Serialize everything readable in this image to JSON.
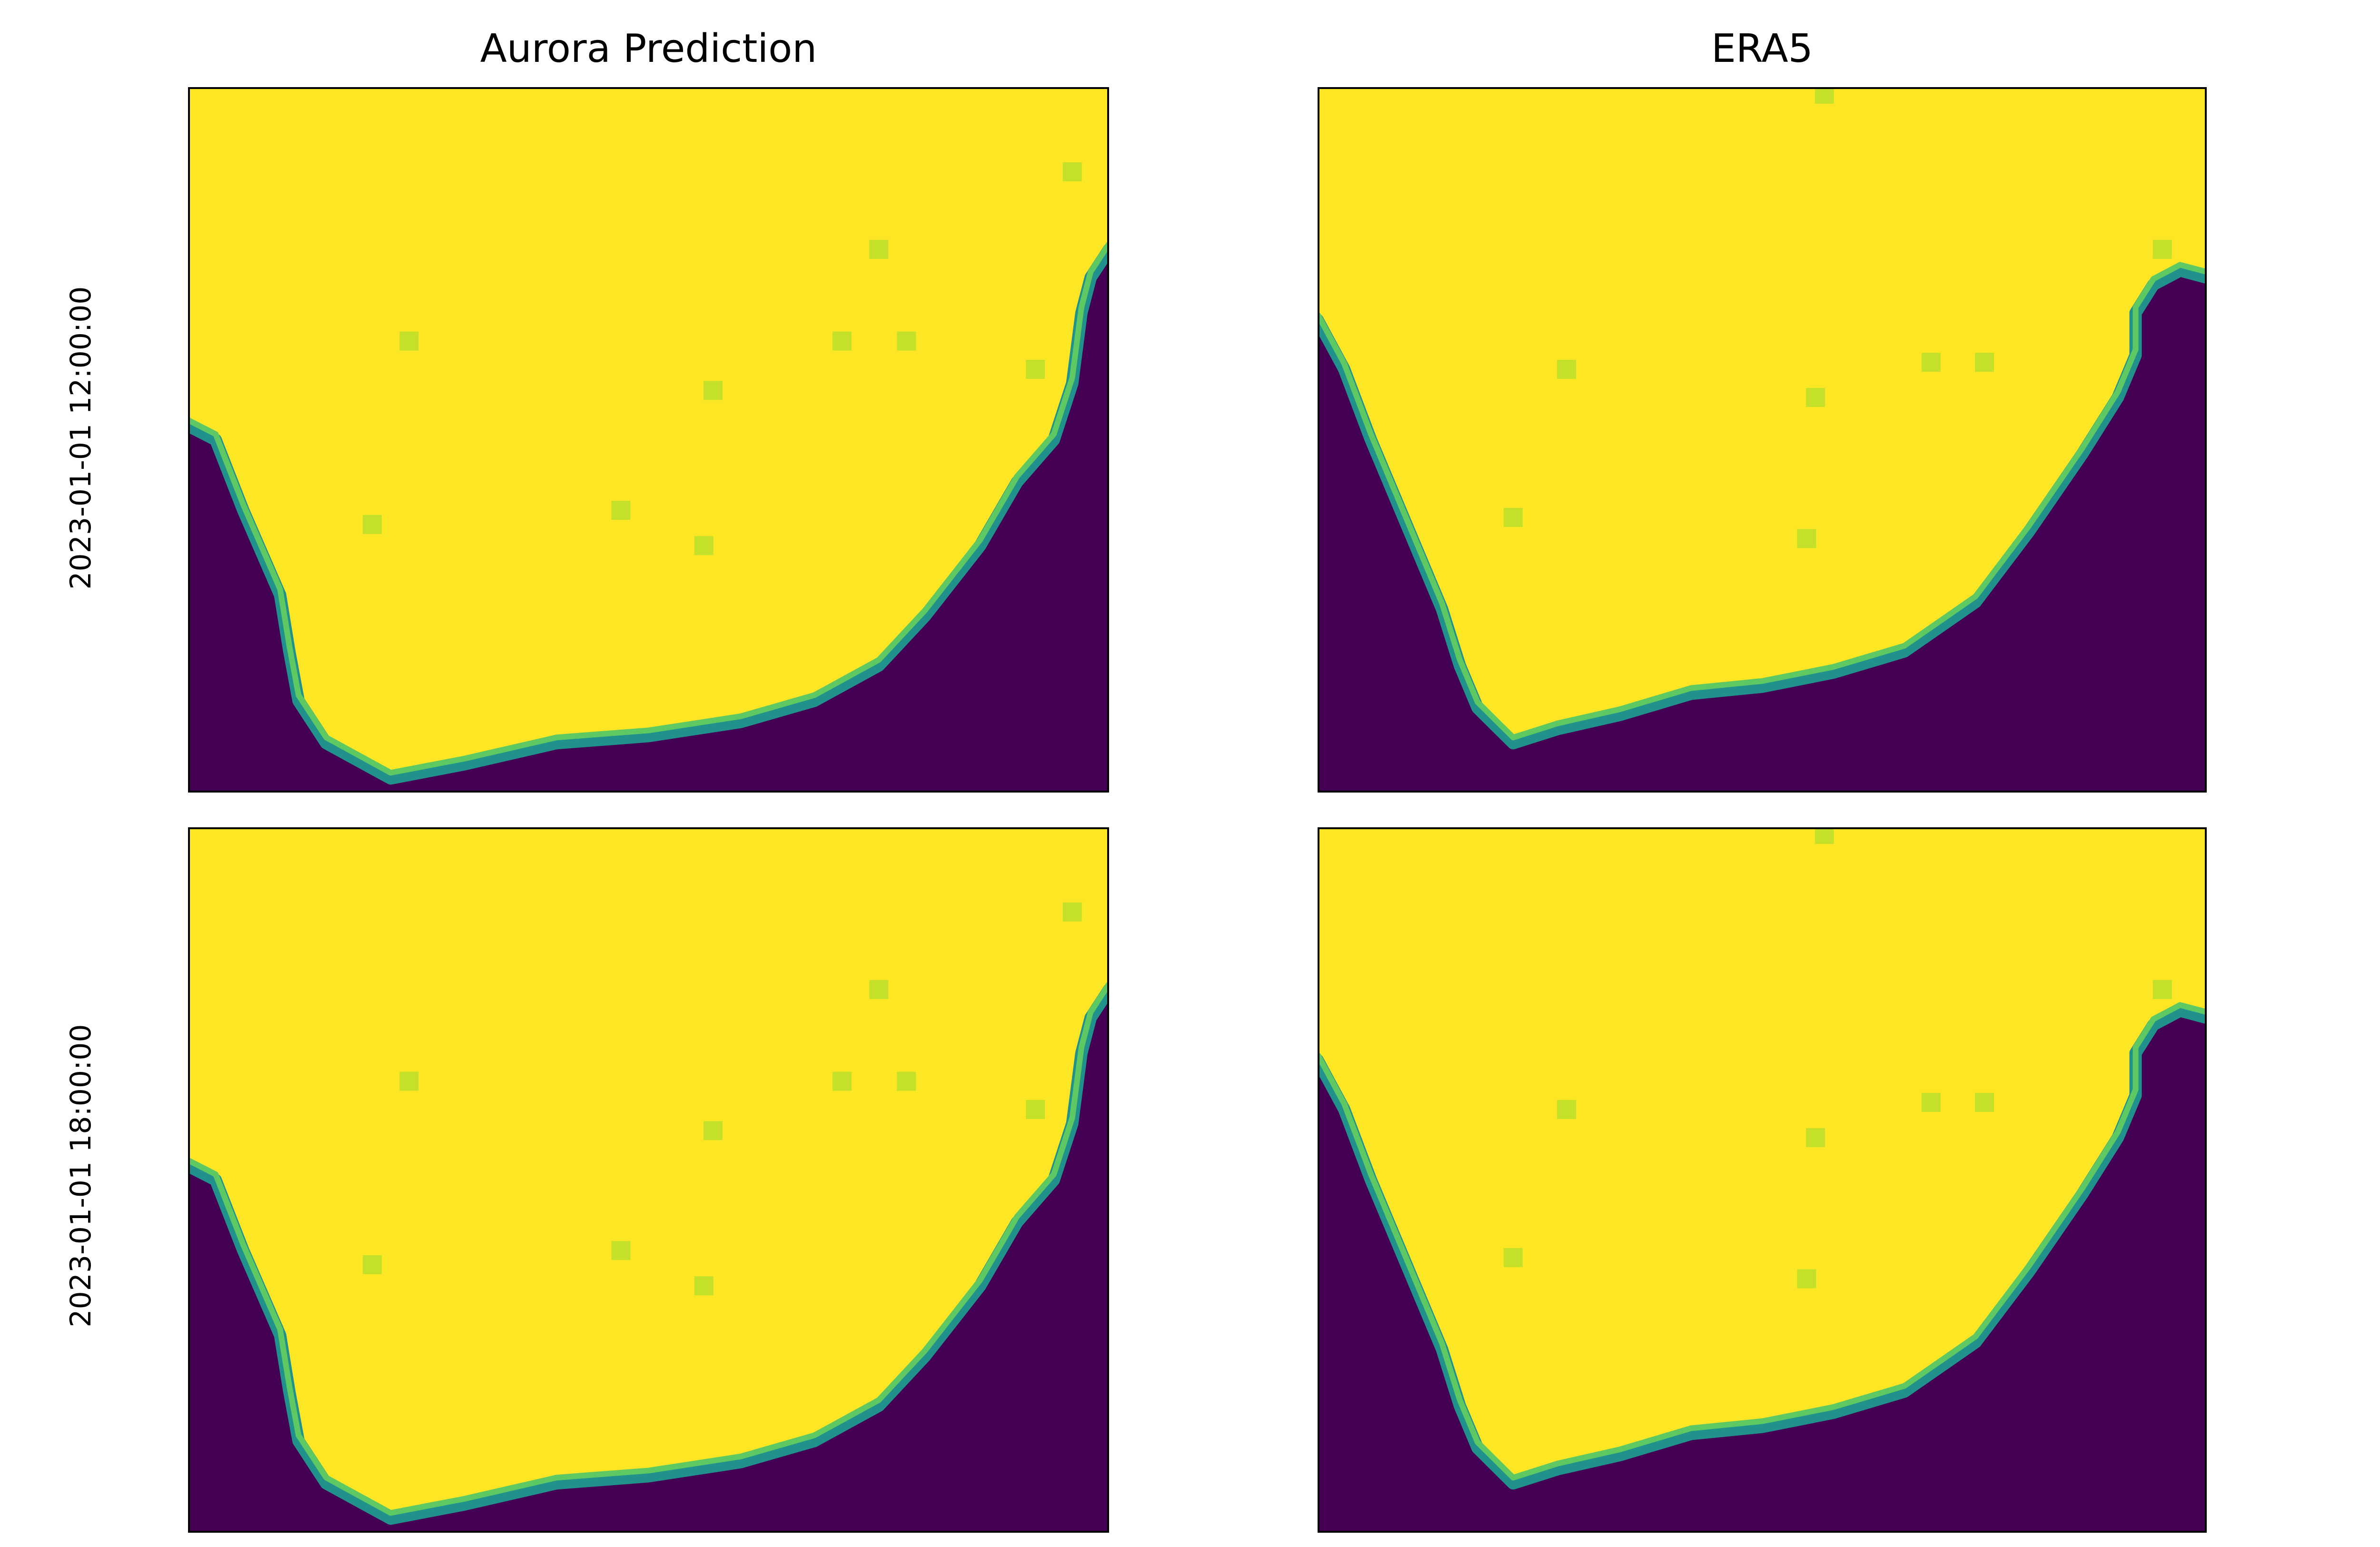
{
  "figure": {
    "columns": [
      "Aurora Prediction",
      "ERA5"
    ],
    "rows": [
      "2023-01-01 12:00:00",
      "2023-01-01 18:00:00"
    ]
  },
  "colors": {
    "land": "#fde725",
    "ocean": "#440154",
    "coast_mid": "#21918c",
    "coast_light": "#5ec962",
    "land_speck": "#b5de2b"
  },
  "chart_data": [
    {
      "type": "heatmap",
      "title": "Aurora Prediction",
      "row": "2023-01-01 12:00:00",
      "colormap": "viridis",
      "axes_ticks": false,
      "description_values": "land fraction field; land ≈ 1 (yellow), ocean ≈ 0 (dark purple)",
      "coastline": [
        [
          0,
          0.48
        ],
        [
          0.03,
          0.5
        ],
        [
          0.06,
          0.6
        ],
        [
          0.1,
          0.72
        ],
        [
          0.11,
          0.8
        ],
        [
          0.12,
          0.87
        ],
        [
          0.15,
          0.93
        ],
        [
          0.22,
          0.98
        ],
        [
          0.3,
          0.96
        ],
        [
          0.4,
          0.93
        ],
        [
          0.5,
          0.92
        ],
        [
          0.6,
          0.9
        ],
        [
          0.68,
          0.87
        ],
        [
          0.75,
          0.82
        ],
        [
          0.8,
          0.75
        ],
        [
          0.86,
          0.65
        ],
        [
          0.9,
          0.56
        ],
        [
          0.94,
          0.5
        ],
        [
          0.96,
          0.42
        ],
        [
          0.97,
          0.32
        ],
        [
          0.98,
          0.27
        ],
        [
          1,
          0.23
        ]
      ],
      "specks": [
        [
          0.24,
          0.36
        ],
        [
          0.71,
          0.36
        ],
        [
          0.78,
          0.36
        ],
        [
          0.57,
          0.43
        ],
        [
          0.92,
          0.4
        ],
        [
          0.47,
          0.6
        ],
        [
          0.56,
          0.65
        ],
        [
          0.2,
          0.62
        ],
        [
          0.96,
          0.12
        ],
        [
          0.75,
          0.23
        ]
      ]
    },
    {
      "type": "heatmap",
      "title": "ERA5",
      "row": "2023-01-01 12:00:00",
      "colormap": "viridis",
      "axes_ticks": false,
      "coastline": [
        [
          0,
          0.33
        ],
        [
          0.03,
          0.4
        ],
        [
          0.06,
          0.5
        ],
        [
          0.1,
          0.62
        ],
        [
          0.14,
          0.74
        ],
        [
          0.16,
          0.82
        ],
        [
          0.18,
          0.88
        ],
        [
          0.22,
          0.93
        ],
        [
          0.27,
          0.91
        ],
        [
          0.34,
          0.89
        ],
        [
          0.42,
          0.86
        ],
        [
          0.5,
          0.85
        ],
        [
          0.58,
          0.83
        ],
        [
          0.66,
          0.8
        ],
        [
          0.74,
          0.73
        ],
        [
          0.8,
          0.63
        ],
        [
          0.86,
          0.52
        ],
        [
          0.9,
          0.44
        ],
        [
          0.92,
          0.38
        ],
        [
          0.92,
          0.32
        ],
        [
          0.94,
          0.28
        ],
        [
          0.97,
          0.26
        ],
        [
          1,
          0.27
        ]
      ],
      "specks": [
        [
          0.28,
          0.4
        ],
        [
          0.69,
          0.39
        ],
        [
          0.75,
          0.39
        ],
        [
          0.56,
          0.44
        ],
        [
          0.55,
          0.64
        ],
        [
          0.22,
          0.61
        ],
        [
          0.95,
          0.23
        ],
        [
          0.57,
          0.01
        ]
      ]
    },
    {
      "type": "heatmap",
      "title": "Aurora Prediction",
      "row": "2023-01-01 18:00:00",
      "colormap": "viridis",
      "axes_ticks": false,
      "coastline": [
        [
          0,
          0.48
        ],
        [
          0.03,
          0.5
        ],
        [
          0.06,
          0.6
        ],
        [
          0.1,
          0.72
        ],
        [
          0.11,
          0.8
        ],
        [
          0.12,
          0.87
        ],
        [
          0.15,
          0.93
        ],
        [
          0.22,
          0.98
        ],
        [
          0.3,
          0.96
        ],
        [
          0.4,
          0.93
        ],
        [
          0.5,
          0.92
        ],
        [
          0.6,
          0.9
        ],
        [
          0.68,
          0.87
        ],
        [
          0.75,
          0.82
        ],
        [
          0.8,
          0.75
        ],
        [
          0.86,
          0.65
        ],
        [
          0.9,
          0.56
        ],
        [
          0.94,
          0.5
        ],
        [
          0.96,
          0.42
        ],
        [
          0.97,
          0.32
        ],
        [
          0.98,
          0.27
        ],
        [
          1,
          0.23
        ]
      ],
      "specks": [
        [
          0.24,
          0.36
        ],
        [
          0.71,
          0.36
        ],
        [
          0.78,
          0.36
        ],
        [
          0.57,
          0.43
        ],
        [
          0.92,
          0.4
        ],
        [
          0.47,
          0.6
        ],
        [
          0.56,
          0.65
        ],
        [
          0.2,
          0.62
        ],
        [
          0.96,
          0.12
        ],
        [
          0.75,
          0.23
        ]
      ]
    },
    {
      "type": "heatmap",
      "title": "ERA5",
      "row": "2023-01-01 18:00:00",
      "colormap": "viridis",
      "axes_ticks": false,
      "coastline": [
        [
          0,
          0.33
        ],
        [
          0.03,
          0.4
        ],
        [
          0.06,
          0.5
        ],
        [
          0.1,
          0.62
        ],
        [
          0.14,
          0.74
        ],
        [
          0.16,
          0.82
        ],
        [
          0.18,
          0.88
        ],
        [
          0.22,
          0.93
        ],
        [
          0.27,
          0.91
        ],
        [
          0.34,
          0.89
        ],
        [
          0.42,
          0.86
        ],
        [
          0.5,
          0.85
        ],
        [
          0.58,
          0.83
        ],
        [
          0.66,
          0.8
        ],
        [
          0.74,
          0.73
        ],
        [
          0.8,
          0.63
        ],
        [
          0.86,
          0.52
        ],
        [
          0.9,
          0.44
        ],
        [
          0.92,
          0.38
        ],
        [
          0.92,
          0.32
        ],
        [
          0.94,
          0.28
        ],
        [
          0.97,
          0.26
        ],
        [
          1,
          0.27
        ]
      ],
      "specks": [
        [
          0.28,
          0.4
        ],
        [
          0.69,
          0.39
        ],
        [
          0.75,
          0.39
        ],
        [
          0.56,
          0.44
        ],
        [
          0.55,
          0.64
        ],
        [
          0.22,
          0.61
        ],
        [
          0.95,
          0.23
        ],
        [
          0.57,
          0.01
        ]
      ]
    }
  ]
}
